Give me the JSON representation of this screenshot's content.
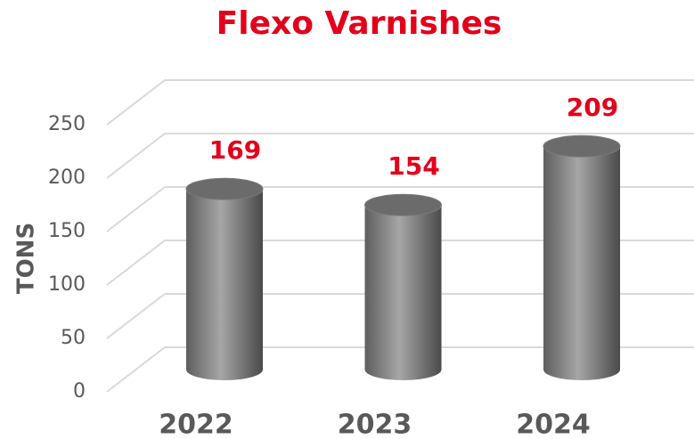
{
  "chart_data": {
    "type": "bar",
    "title": "Flexo Varnishes",
    "y_label": "TONS",
    "categories": [
      "2022",
      "2023",
      "2024"
    ],
    "values": [
      169,
      154,
      209
    ],
    "color": "#8c8c8c",
    "title_color": "#e3001b",
    "label_color": "#e3001b",
    "ylim": [
      0,
      250
    ],
    "yticks": [
      0,
      50,
      100,
      150,
      200,
      250
    ],
    "grid": true
  }
}
